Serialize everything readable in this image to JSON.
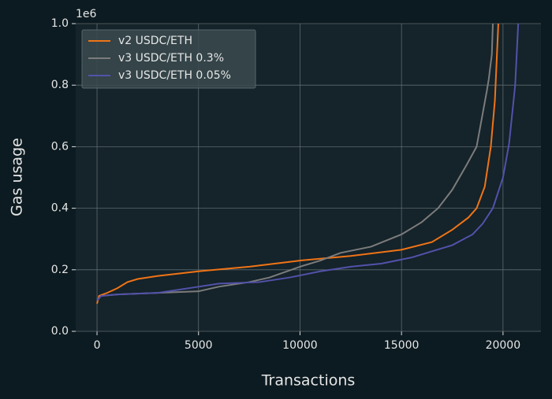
{
  "chart_data": {
    "type": "line",
    "xlabel": "Transactions",
    "ylabel": "Gas usage",
    "y_offset_label": "1e6",
    "xlim": [
      -1050,
      21870
    ],
    "ylim": [
      0,
      1.0
    ],
    "xticks": [
      0,
      5000,
      10000,
      15000,
      20000
    ],
    "yticks": [
      {
        "value": 0,
        "label": "0.0"
      },
      0.2,
      0.4,
      0.6,
      0.8,
      {
        "value": 1.0,
        "label": "1.0"
      }
    ],
    "grid": true,
    "legend": "upper-left",
    "series": [
      {
        "name": "v2 USDC/ETH",
        "color": "#f07416",
        "x": [
          0,
          100,
          500,
          1000,
          1500,
          2000,
          3000,
          5000,
          7500,
          10000,
          12500,
          15000,
          16500,
          17500,
          18300,
          18700,
          19100,
          19400,
          19600,
          19770
        ],
        "values": [
          0.09,
          0.115,
          0.125,
          0.14,
          0.16,
          0.17,
          0.18,
          0.195,
          0.21,
          0.23,
          0.245,
          0.265,
          0.29,
          0.33,
          0.37,
          0.4,
          0.47,
          0.6,
          0.75,
          1.0
        ]
      },
      {
        "name": "v3 USDC/ETH 0.3%",
        "color": "#7c7c7c",
        "x": [
          0,
          200,
          1000,
          3000,
          5000,
          6000,
          7500,
          8500,
          10000,
          11000,
          12000,
          13500,
          15000,
          16000,
          16800,
          17500,
          18200,
          18700,
          19200,
          19300,
          19450,
          19500
        ],
        "values": [
          0.1,
          0.115,
          0.12,
          0.125,
          0.13,
          0.145,
          0.16,
          0.175,
          0.21,
          0.23,
          0.255,
          0.275,
          0.315,
          0.355,
          0.4,
          0.46,
          0.54,
          0.6,
          0.78,
          0.82,
          0.9,
          1.0
        ]
      },
      {
        "name": "v3 USDC/ETH 0.05%",
        "color": "#5252aa",
        "x": [
          0,
          200,
          1000,
          3000,
          4000,
          5000,
          6000,
          8000,
          9500,
          11000,
          12500,
          14000,
          15500,
          16500,
          17500,
          18500,
          19000,
          19500,
          20000,
          20300,
          20600,
          20750
        ],
        "values": [
          0.1,
          0.115,
          0.12,
          0.125,
          0.135,
          0.145,
          0.155,
          0.16,
          0.175,
          0.195,
          0.21,
          0.22,
          0.24,
          0.26,
          0.28,
          0.315,
          0.35,
          0.4,
          0.5,
          0.61,
          0.8,
          1.0
        ]
      }
    ]
  }
}
